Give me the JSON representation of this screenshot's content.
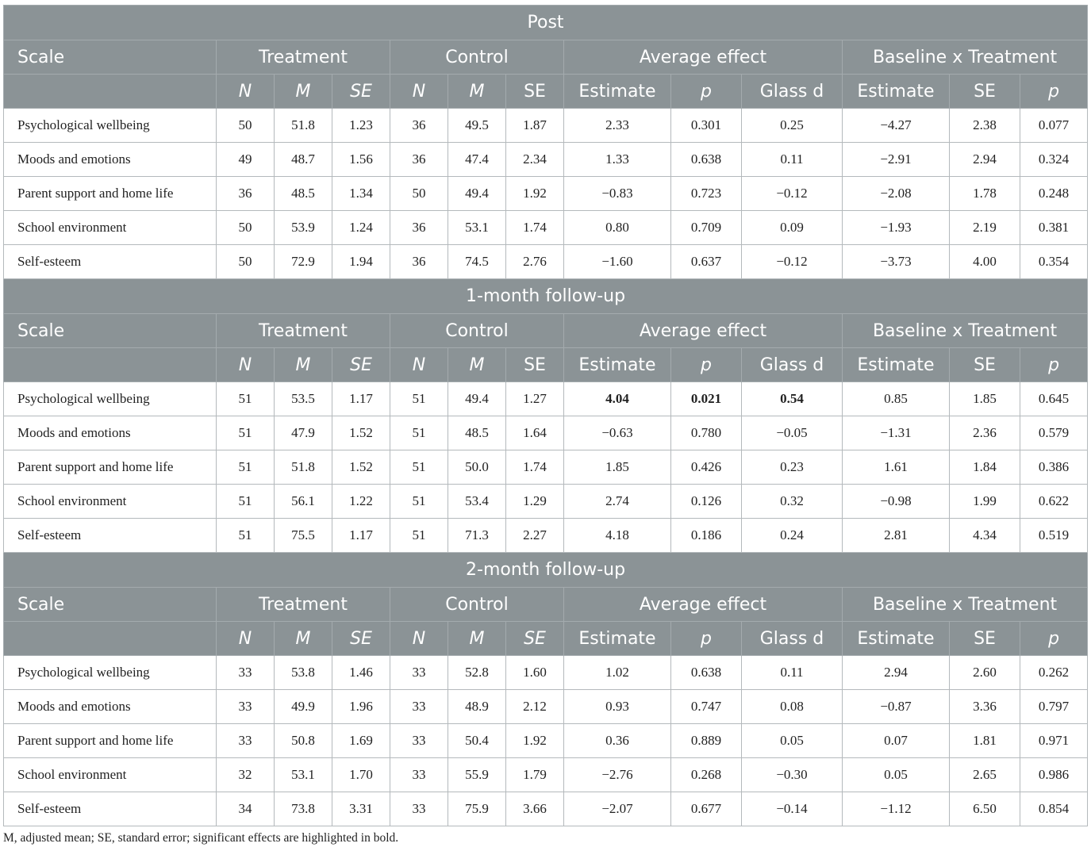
{
  "columns": {
    "scale": "Scale",
    "groups": [
      "Treatment",
      "Control",
      "Average effect",
      "Baseline x Treatment"
    ],
    "sub": [
      "N",
      "M",
      "SE",
      "N",
      "M",
      "SE",
      "Estimate",
      "p",
      "Glass d",
      "Estimate",
      "SE",
      "p"
    ],
    "sub_italic": [
      true,
      true,
      true,
      true,
      true,
      false,
      false,
      true,
      false,
      false,
      false,
      true
    ]
  },
  "sections": [
    {
      "title": "Post",
      "sub_italic": [
        true,
        true,
        true,
        true,
        true,
        false,
        false,
        true,
        false,
        false,
        false,
        true
      ],
      "rows": [
        {
          "scale": "Psychological wellbeing",
          "cells": [
            "50",
            "51.8",
            "1.23",
            "36",
            "49.5",
            "1.87",
            "2.33",
            "0.301",
            "0.25",
            "−4.27",
            "2.38",
            "0.077"
          ],
          "bold": []
        },
        {
          "scale": "Moods and emotions",
          "cells": [
            "49",
            "48.7",
            "1.56",
            "36",
            "47.4",
            "2.34",
            "1.33",
            "0.638",
            "0.11",
            "−2.91",
            "2.94",
            "0.324"
          ],
          "bold": []
        },
        {
          "scale": "Parent support and home life",
          "cells": [
            "36",
            "48.5",
            "1.34",
            "50",
            "49.4",
            "1.92",
            "−0.83",
            "0.723",
            "−0.12",
            "−2.08",
            "1.78",
            "0.248"
          ],
          "bold": []
        },
        {
          "scale": "School environment",
          "cells": [
            "50",
            "53.9",
            "1.24",
            "36",
            "53.1",
            "1.74",
            "0.80",
            "0.709",
            "0.09",
            "−1.93",
            "2.19",
            "0.381"
          ],
          "bold": []
        },
        {
          "scale": "Self-esteem",
          "cells": [
            "50",
            "72.9",
            "1.94",
            "36",
            "74.5",
            "2.76",
            "−1.60",
            "0.637",
            "−0.12",
            "−3.73",
            "4.00",
            "0.354"
          ],
          "bold": []
        }
      ]
    },
    {
      "title": "1-month follow-up",
      "sub_italic": [
        true,
        true,
        true,
        true,
        true,
        false,
        false,
        true,
        false,
        false,
        false,
        true
      ],
      "rows": [
        {
          "scale": "Psychological wellbeing",
          "cells": [
            "51",
            "53.5",
            "1.17",
            "51",
            "49.4",
            "1.27",
            "4.04",
            "0.021",
            "0.54",
            "0.85",
            "1.85",
            "0.645"
          ],
          "bold": [
            6,
            7,
            8
          ]
        },
        {
          "scale": "Moods and emotions",
          "cells": [
            "51",
            "47.9",
            "1.52",
            "51",
            "48.5",
            "1.64",
            "−0.63",
            "0.780",
            "−0.05",
            "−1.31",
            "2.36",
            "0.579"
          ],
          "bold": []
        },
        {
          "scale": "Parent support and home life",
          "cells": [
            "51",
            "51.8",
            "1.52",
            "51",
            "50.0",
            "1.74",
            "1.85",
            "0.426",
            "0.23",
            "1.61",
            "1.84",
            "0.386"
          ],
          "bold": []
        },
        {
          "scale": "School environment",
          "cells": [
            "51",
            "56.1",
            "1.22",
            "51",
            "53.4",
            "1.29",
            "2.74",
            "0.126",
            "0.32",
            "−0.98",
            "1.99",
            "0.622"
          ],
          "bold": []
        },
        {
          "scale": "Self-esteem",
          "cells": [
            "51",
            "75.5",
            "1.17",
            "51",
            "71.3",
            "2.27",
            "4.18",
            "0.186",
            "0.24",
            "2.81",
            "4.34",
            "0.519"
          ],
          "bold": []
        }
      ]
    },
    {
      "title": "2-month follow-up",
      "sub_italic": [
        true,
        true,
        true,
        true,
        true,
        true,
        false,
        true,
        false,
        false,
        false,
        true
      ],
      "rows": [
        {
          "scale": "Psychological wellbeing",
          "cells": [
            "33",
            "53.8",
            "1.46",
            "33",
            "52.8",
            "1.60",
            "1.02",
            "0.638",
            "0.11",
            "2.94",
            "2.60",
            "0.262"
          ],
          "bold": []
        },
        {
          "scale": "Moods and emotions",
          "cells": [
            "33",
            "49.9",
            "1.96",
            "33",
            "48.9",
            "2.12",
            "0.93",
            "0.747",
            "0.08",
            "−0.87",
            "3.36",
            "0.797"
          ],
          "bold": []
        },
        {
          "scale": "Parent support and home life",
          "cells": [
            "33",
            "50.8",
            "1.69",
            "33",
            "50.4",
            "1.92",
            "0.36",
            "0.889",
            "0.05",
            "0.07",
            "1.81",
            "0.971"
          ],
          "bold": []
        },
        {
          "scale": "School environment",
          "cells": [
            "32",
            "53.1",
            "1.70",
            "33",
            "55.9",
            "1.79",
            "−2.76",
            "0.268",
            "−0.30",
            "0.05",
            "2.65",
            "0.986"
          ],
          "bold": []
        },
        {
          "scale": "Self-esteem",
          "cells": [
            "34",
            "73.8",
            "3.31",
            "33",
            "75.9",
            "3.66",
            "−2.07",
            "0.677",
            "−0.14",
            "−1.12",
            "6.50",
            "0.854"
          ],
          "bold": []
        }
      ]
    }
  ],
  "footnote": "M, adjusted mean; SE, standard error; significant effects are highlighted in bold."
}
